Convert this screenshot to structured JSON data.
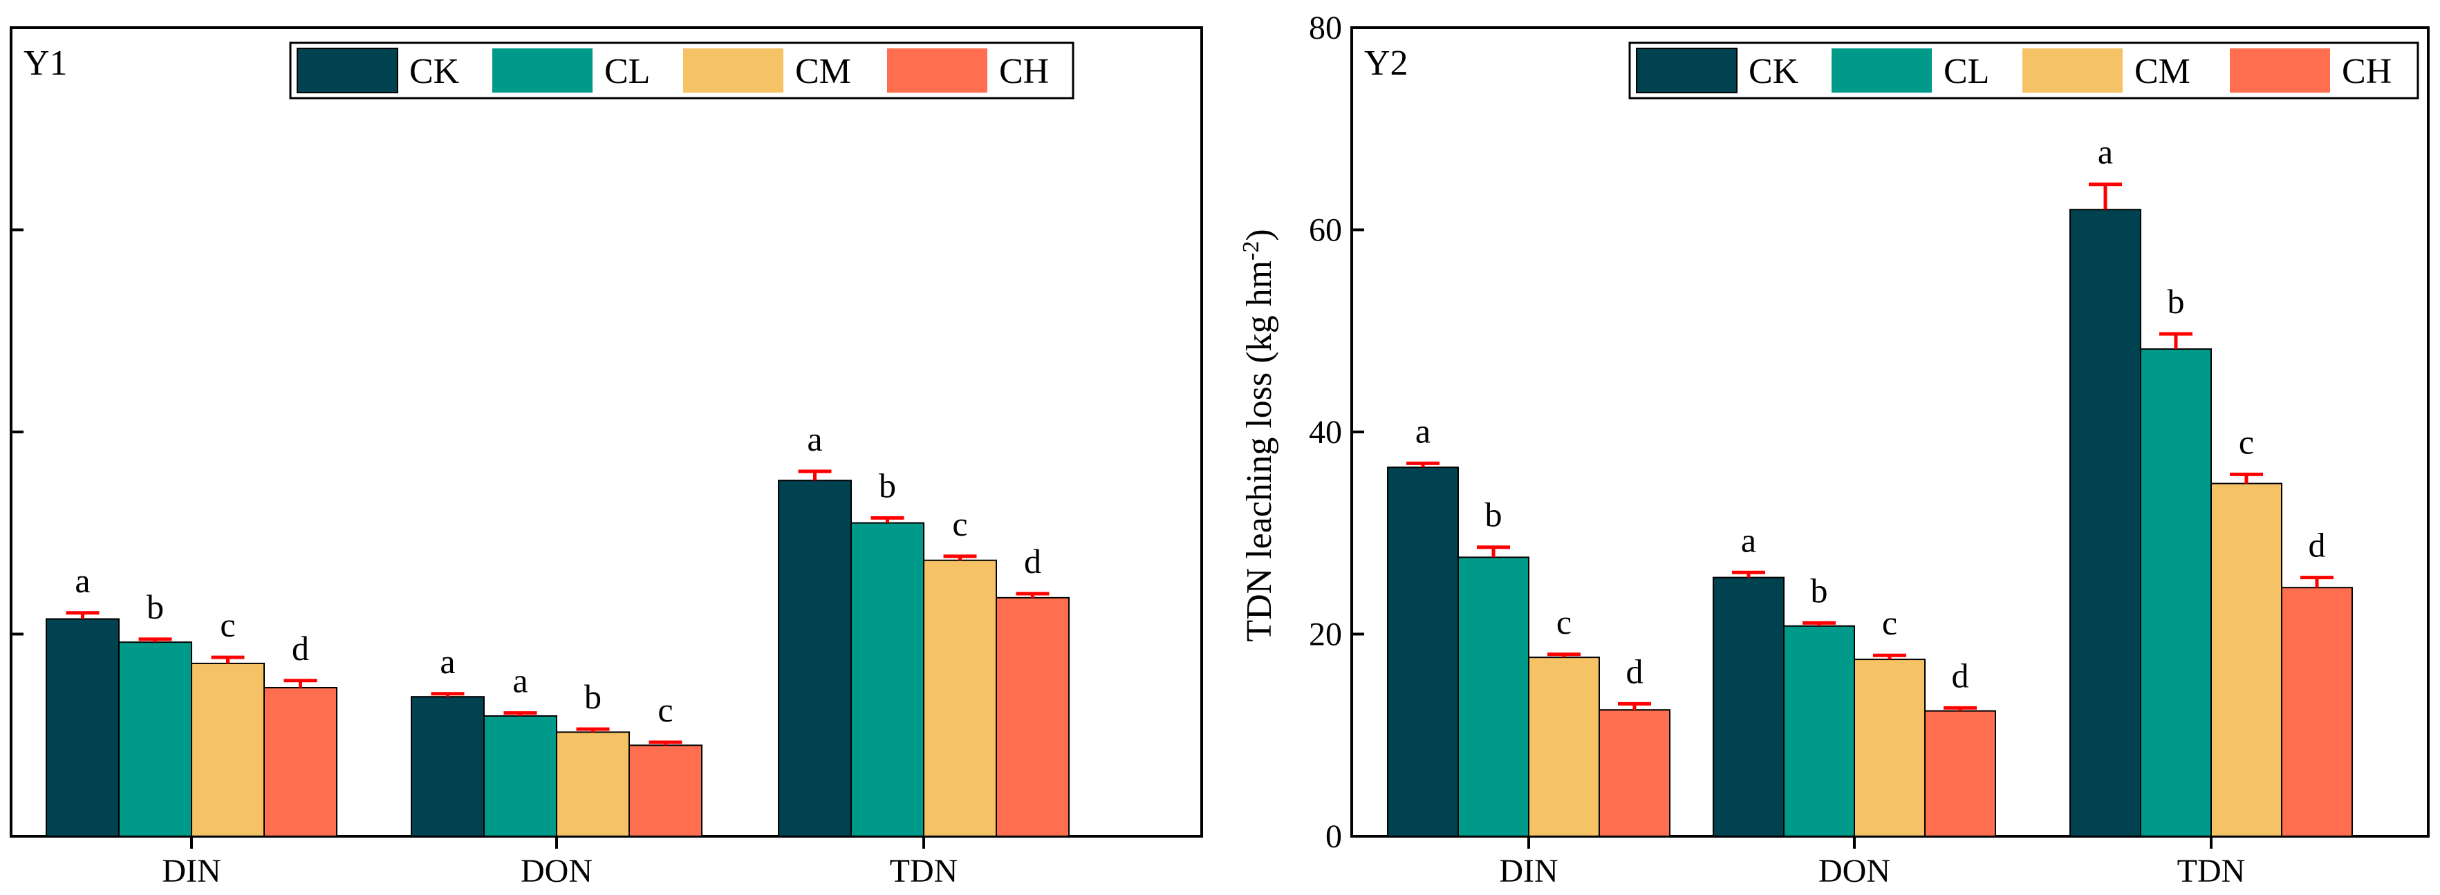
{
  "chart_data": [
    {
      "type": "bar",
      "panel_label": "Y1",
      "categories": [
        "DIN",
        "DON",
        "TDN"
      ],
      "legend": [
        "CK",
        "CL",
        "CM",
        "CH"
      ],
      "colors": [
        "#00424f",
        "#009a8a",
        "#f5c365",
        "#ff6e4e"
      ],
      "ylim": [
        0,
        80
      ],
      "yticks": [
        0,
        20,
        40,
        60,
        80
      ],
      "show_tick_labels": false,
      "ylabel": "",
      "series": [
        {
          "name": "CK",
          "values": [
            21.5,
            13.8,
            35.2
          ],
          "errors": [
            0.6,
            0.3,
            0.9
          ],
          "letters": [
            "a",
            "a",
            "a"
          ]
        },
        {
          "name": "CL",
          "values": [
            19.2,
            11.9,
            31.0
          ],
          "errors": [
            0.3,
            0.3,
            0.5
          ],
          "letters": [
            "b",
            "a",
            "b"
          ]
        },
        {
          "name": "CM",
          "values": [
            17.1,
            10.3,
            27.3
          ],
          "errors": [
            0.6,
            0.3,
            0.4
          ],
          "letters": [
            "c",
            "b",
            "c"
          ]
        },
        {
          "name": "CH",
          "values": [
            14.7,
            9.0,
            23.6
          ],
          "errors": [
            0.7,
            0.3,
            0.4
          ],
          "letters": [
            "d",
            "c",
            "d"
          ]
        }
      ]
    },
    {
      "type": "bar",
      "panel_label": "Y2",
      "categories": [
        "DIN",
        "DON",
        "TDN"
      ],
      "legend": [
        "CK",
        "CL",
        "CM",
        "CH"
      ],
      "colors": [
        "#00424f",
        "#009a8a",
        "#f5c365",
        "#ff6e4e"
      ],
      "ylim": [
        0,
        80
      ],
      "yticks": [
        0,
        20,
        40,
        60,
        80
      ],
      "show_tick_labels": true,
      "ylabel": "TDN leaching loss (kg hm",
      "ylabel_sup": "-2",
      "ylabel_close": ")",
      "series": [
        {
          "name": "CK",
          "values": [
            36.5,
            25.6,
            62.0
          ],
          "errors": [
            0.4,
            0.5,
            2.5
          ],
          "letters": [
            "a",
            "a",
            "a"
          ]
        },
        {
          "name": "CL",
          "values": [
            27.6,
            20.8,
            48.2
          ],
          "errors": [
            1.0,
            0.3,
            1.5
          ],
          "letters": [
            "b",
            "b",
            "b"
          ]
        },
        {
          "name": "CM",
          "values": [
            17.7,
            17.5,
            34.9
          ],
          "errors": [
            0.3,
            0.4,
            0.9
          ],
          "letters": [
            "c",
            "c",
            "c"
          ]
        },
        {
          "name": "CH",
          "values": [
            12.5,
            12.4,
            24.6
          ],
          "errors": [
            0.6,
            0.3,
            1.0
          ],
          "letters": [
            "d",
            "d",
            "d"
          ]
        }
      ]
    }
  ]
}
